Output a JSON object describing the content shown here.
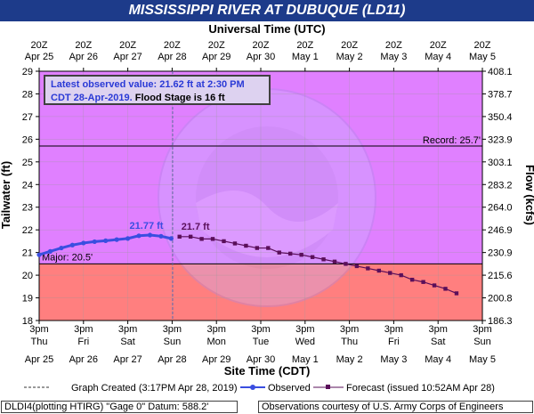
{
  "title": "MISSISSIPPI RIVER AT DUBUQUE (LD11)",
  "top_axis_title": "Universal Time (UTC)",
  "bottom_axis_title": "Site Time (CDT)",
  "left_axis_title": "Tailwater (ft)",
  "right_axis_title": "Flow (kcfs)",
  "info_box": {
    "line1": "Latest observed value: 21.62 ft at 2:30 PM",
    "line2_blue": "CDT 28-Apr-2019.",
    "line2_black": " Flood Stage is 16 ft"
  },
  "legend": {
    "graph_created": "Graph Created (3:17PM Apr 28, 2019)",
    "observed": "Observed",
    "forecast": "Forecast (issued 10:52AM Apr 28)"
  },
  "footer_left": "DLDI4(plotting HTIRG) \"Gage 0\" Datum: 588.2'",
  "footer_right": "Observations courtesy of U.S. Army Corps of Engineers",
  "colors": {
    "upper_band": "#e080ff",
    "lower_band": "#ff7f7f",
    "observed": "#3a4ee0",
    "forecast": "#5a0f5a",
    "title_bg": "#1d3b8a"
  },
  "chart_data": {
    "type": "line",
    "ylim": [
      18,
      29
    ],
    "y_ticks": [
      "18",
      "19",
      "20",
      "21",
      "22",
      "23",
      "24",
      "25",
      "26",
      "27",
      "28",
      "29"
    ],
    "right_ticks": [
      "186.3",
      "200.8",
      "215.6",
      "230.9",
      "246.9",
      "264.0",
      "283.2",
      "303.1",
      "323.9",
      "350.4",
      "378.7",
      "408.1"
    ],
    "top_ticks": [
      {
        "line1": "20Z",
        "line2": "Apr 25"
      },
      {
        "line1": "20Z",
        "line2": "Apr 26"
      },
      {
        "line1": "20Z",
        "line2": "Apr 27"
      },
      {
        "line1": "20Z",
        "line2": "Apr 28"
      },
      {
        "line1": "20Z",
        "line2": "Apr 29"
      },
      {
        "line1": "20Z",
        "line2": "Apr 30"
      },
      {
        "line1": "20Z",
        "line2": "May 1"
      },
      {
        "line1": "20Z",
        "line2": "May 2"
      },
      {
        "line1": "20Z",
        "line2": "May 3"
      },
      {
        "line1": "20Z",
        "line2": "May 4"
      },
      {
        "line1": "20Z",
        "line2": "May 5"
      }
    ],
    "bottom_ticks": [
      {
        "time": "3pm",
        "day": "Thu",
        "date": "Apr 25"
      },
      {
        "time": "3pm",
        "day": "Fri",
        "date": "Apr 26"
      },
      {
        "time": "3pm",
        "day": "Sat",
        "date": "Apr 27"
      },
      {
        "time": "3pm",
        "day": "Sun",
        "date": "Apr 28"
      },
      {
        "time": "3pm",
        "day": "Mon",
        "date": "Apr 29"
      },
      {
        "time": "3pm",
        "day": "Tue",
        "date": "Apr 30"
      },
      {
        "time": "3pm",
        "day": "Wed",
        "date": "May 1"
      },
      {
        "time": "3pm",
        "day": "Thu",
        "date": "May 2"
      },
      {
        "time": "3pm",
        "day": "Fri",
        "date": "May 3"
      },
      {
        "time": "3pm",
        "day": "Sat",
        "date": "May 4"
      },
      {
        "time": "3pm",
        "day": "Sun",
        "date": "May 5"
      }
    ],
    "record_level": 25.7,
    "record_label": "Record: 25.7'",
    "major_level": 20.5,
    "major_label": "Major: 20.5'",
    "graph_created_x": "Apr 28 3:17pm",
    "observed_peak_label": "21.77 ft",
    "forecast_start_label": "21.7 ft",
    "series": [
      {
        "name": "Observed",
        "points": [
          [
            "Apr 25 3pm",
            20.9
          ],
          [
            "Apr 25 9pm",
            21.05
          ],
          [
            "Apr 26 3am",
            21.2
          ],
          [
            "Apr 26 9am",
            21.33
          ],
          [
            "Apr 26 3pm",
            21.42
          ],
          [
            "Apr 26 9pm",
            21.48
          ],
          [
            "Apr 27 3am",
            21.52
          ],
          [
            "Apr 27 9am",
            21.57
          ],
          [
            "Apr 27 3pm",
            21.62
          ],
          [
            "Apr 27 9pm",
            21.74
          ],
          [
            "Apr 28 3am",
            21.77
          ],
          [
            "Apr 28 9am",
            21.72
          ],
          [
            "Apr 28 2:30pm",
            21.62
          ]
        ]
      },
      {
        "name": "Forecast",
        "points": [
          [
            "Apr 28 7pm",
            21.7
          ],
          [
            "Apr 29 1am",
            21.7
          ],
          [
            "Apr 29 7am",
            21.6
          ],
          [
            "Apr 29 1pm",
            21.6
          ],
          [
            "Apr 29 7pm",
            21.5
          ],
          [
            "Apr 30 1am",
            21.4
          ],
          [
            "Apr 30 7am",
            21.3
          ],
          [
            "Apr 30 1pm",
            21.2
          ],
          [
            "Apr 30 7pm",
            21.2
          ],
          [
            "May 1 1am",
            21.0
          ],
          [
            "May 1 7am",
            20.95
          ],
          [
            "May 1 1pm",
            20.9
          ],
          [
            "May 1 7pm",
            20.8
          ],
          [
            "May 2 1am",
            20.7
          ],
          [
            "May 2 7am",
            20.6
          ],
          [
            "May 2 1pm",
            20.5
          ],
          [
            "May 2 7pm",
            20.4
          ],
          [
            "May 3 1am",
            20.3
          ],
          [
            "May 3 7am",
            20.2
          ],
          [
            "May 3 1pm",
            20.1
          ],
          [
            "May 3 7pm",
            20.0
          ],
          [
            "May 4 1am",
            19.8
          ],
          [
            "May 4 7am",
            19.7
          ],
          [
            "May 4 1pm",
            19.55
          ],
          [
            "May 4 7pm",
            19.4
          ],
          [
            "May 5 1am",
            19.2
          ]
        ]
      }
    ]
  }
}
